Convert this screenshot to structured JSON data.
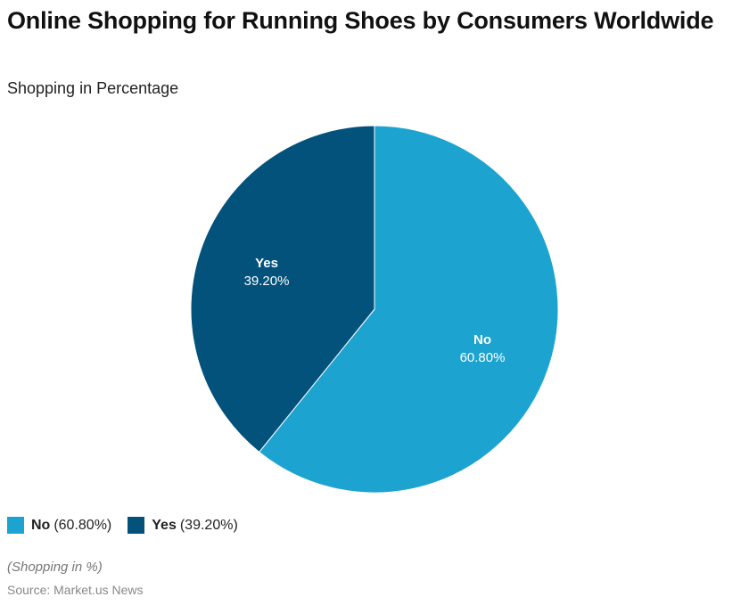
{
  "header": {
    "title": "Online Shopping for Running Shoes by Consumers Worldwide",
    "subtitle": "Shopping in Percentage"
  },
  "legend": {
    "items": [
      {
        "name": "No",
        "value": "(60.80%)",
        "color": "#1ca3d0"
      },
      {
        "name": "Yes",
        "value": "(39.20%)",
        "color": "#03527b"
      }
    ]
  },
  "slices": {
    "no": {
      "label": "No",
      "value_label": "60.80%"
    },
    "yes": {
      "label": "Yes",
      "value_label": "39.20%"
    }
  },
  "footer": {
    "note": "(Shopping in %)",
    "source": "Source: Market.us News"
  },
  "chart_data": {
    "type": "pie",
    "title": "Online Shopping for Running Shoes by Consumers Worldwide",
    "subtitle": "Shopping in Percentage",
    "categories": [
      "No",
      "Yes"
    ],
    "values": [
      60.8,
      39.2
    ],
    "unit": "%",
    "colors": [
      "#1ca3d0",
      "#03527b"
    ],
    "legend_position": "bottom-left",
    "annotations": [
      "(Shopping in %)",
      "Source: Market.us News"
    ]
  }
}
